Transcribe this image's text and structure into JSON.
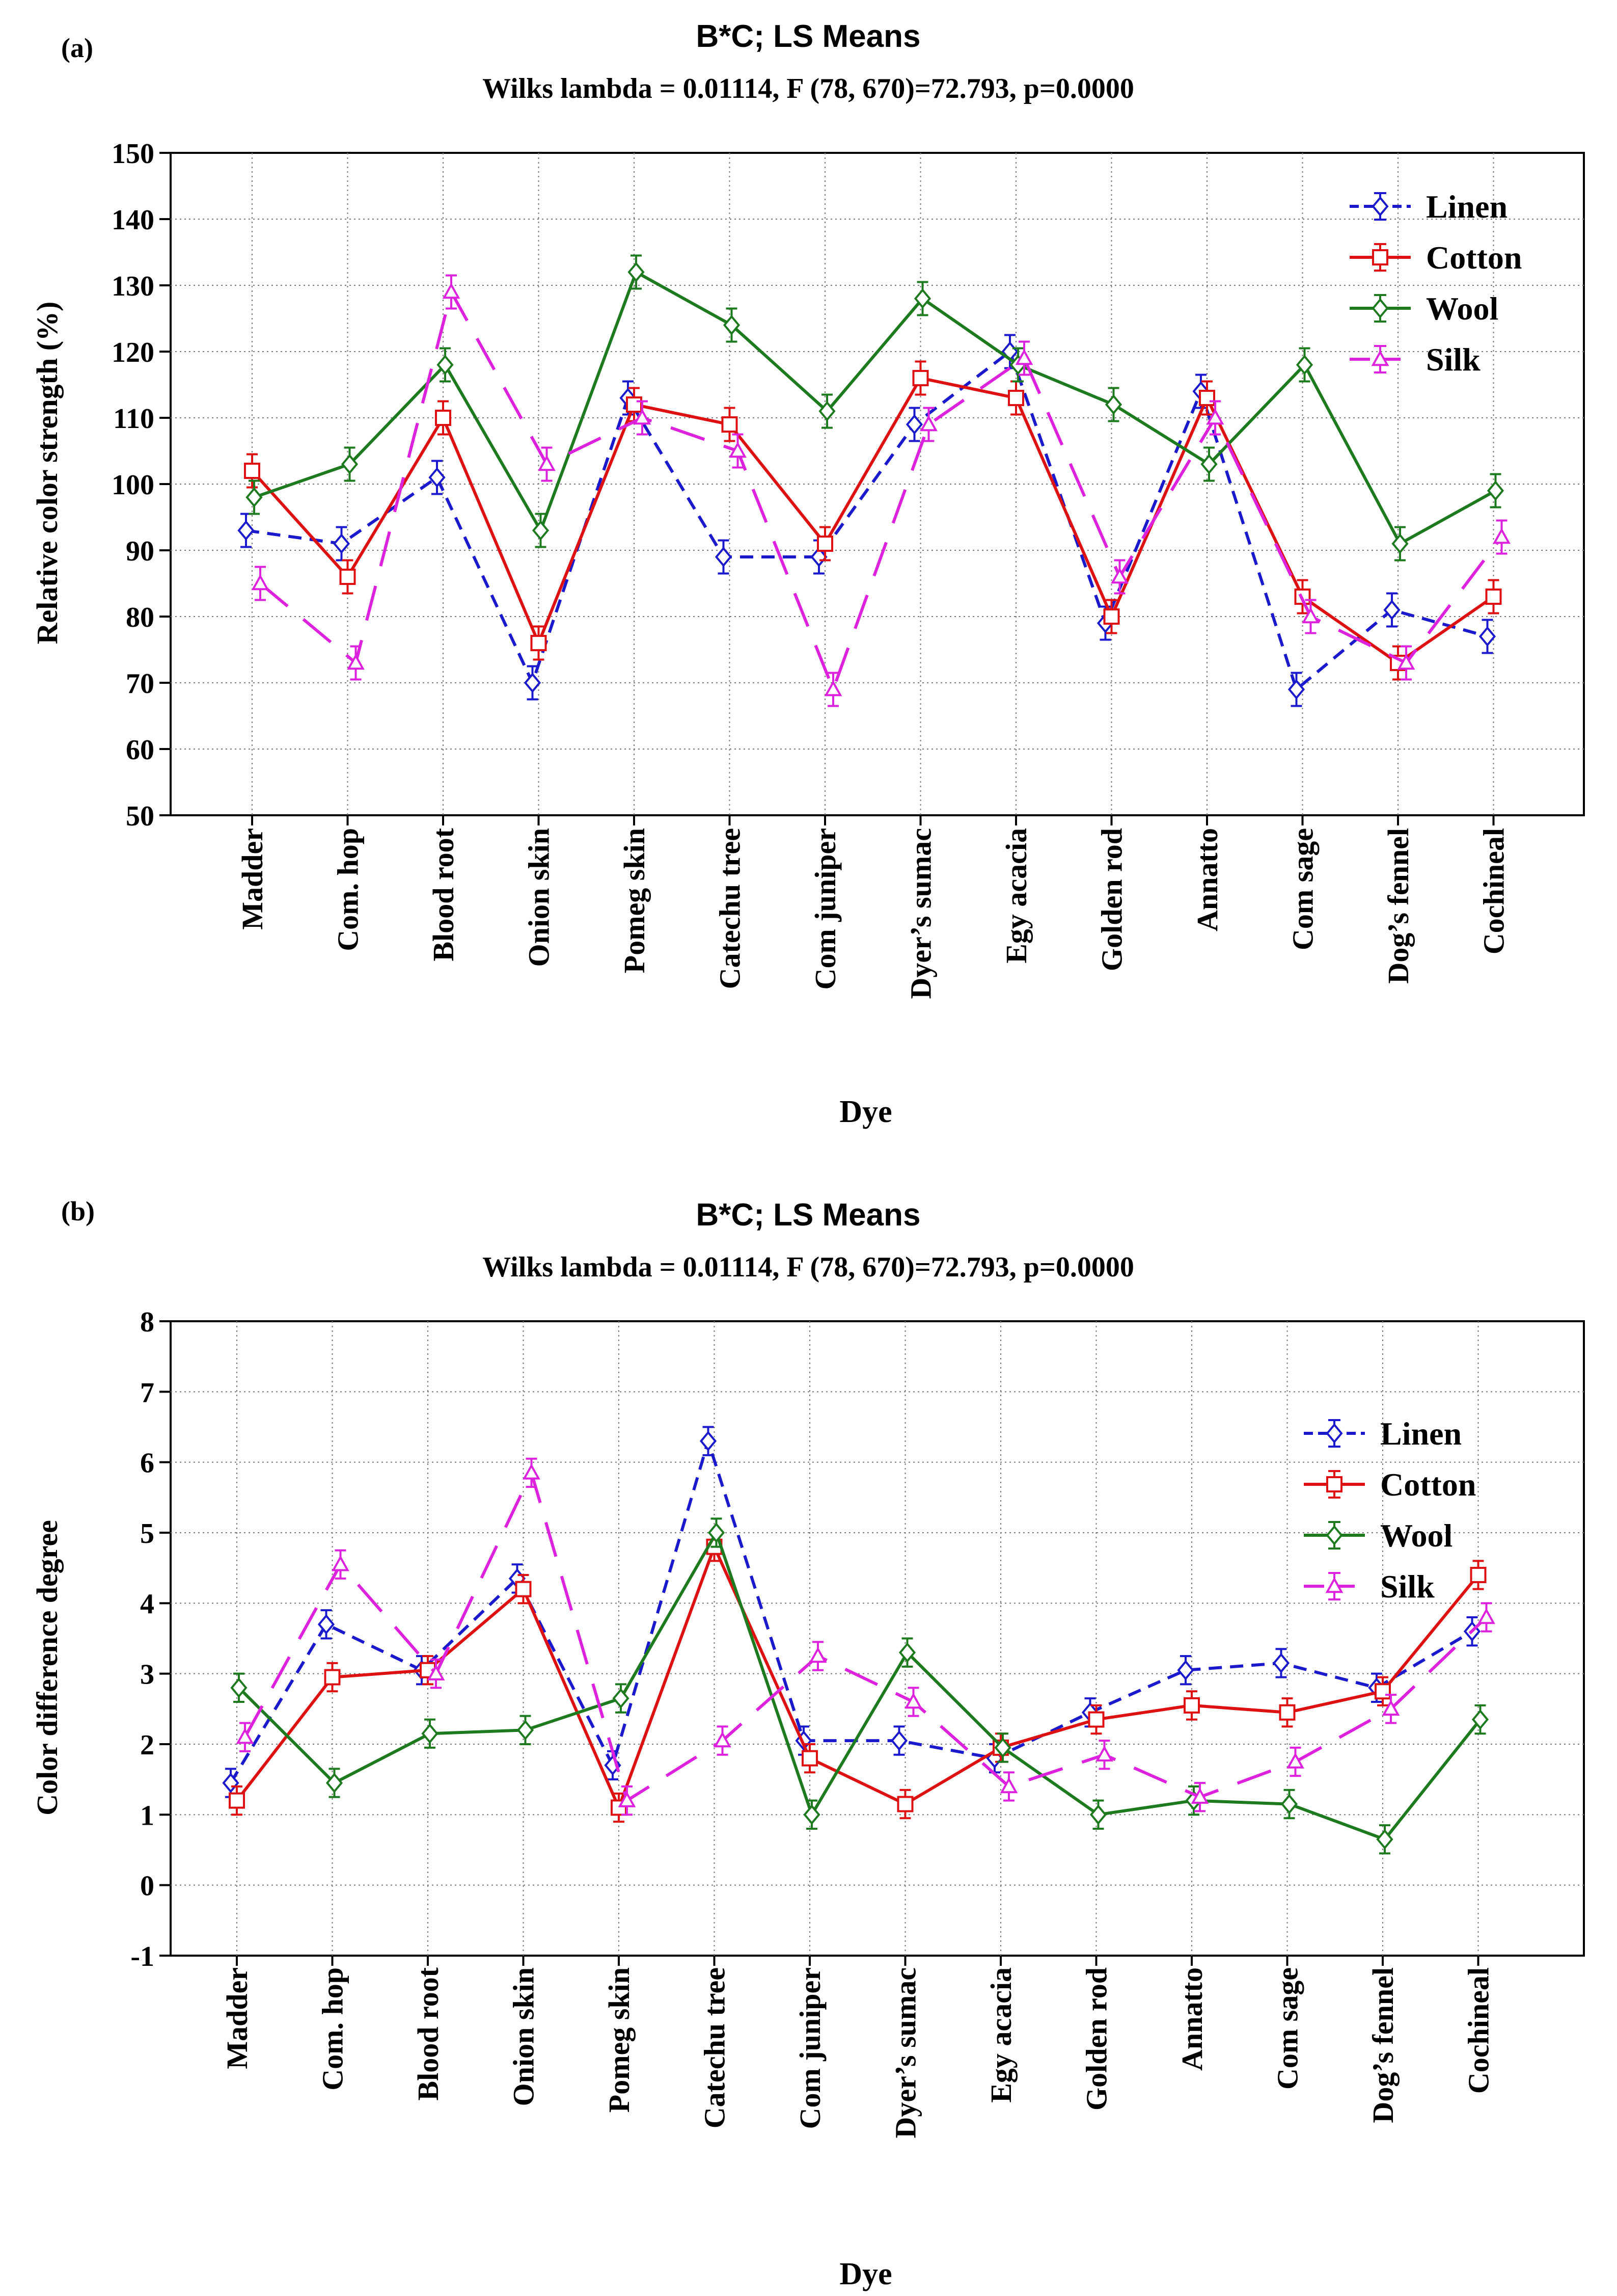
{
  "chart_data": [
    {
      "type": "line",
      "panel_label": "(a)",
      "title": "B*C; LS Means",
      "subtitle": "Wilks lambda = 0.01114, F (78, 670)=72.793, p=0.0000",
      "xlabel": "Dye",
      "ylabel": "Relative color strength (%)",
      "ylim": [
        50,
        150
      ],
      "yticks": [
        50,
        60,
        70,
        80,
        90,
        100,
        110,
        120,
        130,
        140,
        150
      ],
      "grid": true,
      "legend_position": "top-right",
      "categories": [
        "Madder",
        "Com. hop",
        "Blood root",
        "Onion skin",
        "Pomeg skin",
        "Catechu tree",
        "Com juniper",
        "Dyer’s sumac",
        "Egy acacia",
        "Golden rod",
        "Annatto",
        "Com sage",
        "Dog’s fennel",
        "Cochineal"
      ],
      "series": [
        {
          "name": "Linen",
          "color": "#1a1acc",
          "marker": "diamond",
          "dash": "dashed",
          "values": [
            93,
            91,
            101,
            70,
            113,
            89,
            89,
            109,
            120,
            79,
            114,
            69,
            81,
            77
          ],
          "errors": [
            2.5,
            2.5,
            2.5,
            2.5,
            2.5,
            2.5,
            2.5,
            2.5,
            2.5,
            2.5,
            2.5,
            2.5,
            2.5,
            2.5
          ]
        },
        {
          "name": "Cotton",
          "color": "#dd1111",
          "marker": "square",
          "dash": "solid",
          "values": [
            102,
            86,
            110,
            76,
            112,
            109,
            91,
            116,
            113,
            80,
            113,
            83,
            73,
            83
          ],
          "errors": [
            2.5,
            2.5,
            2.5,
            2.5,
            2.5,
            2.5,
            2.5,
            2.5,
            2.5,
            2.5,
            2.5,
            2.5,
            2.5,
            2.5
          ]
        },
        {
          "name": "Wool",
          "color": "#1e7a1e",
          "marker": "diamond",
          "dash": "solid",
          "values": [
            98,
            103,
            118,
            93,
            132,
            124,
            111,
            128,
            118,
            112,
            103,
            118,
            91,
            99
          ],
          "errors": [
            2.5,
            2.5,
            2.5,
            2.5,
            2.5,
            2.5,
            2.5,
            2.5,
            2.5,
            2.5,
            2.5,
            2.5,
            2.5,
            2.5
          ]
        },
        {
          "name": "Silk",
          "color": "#dd22dd",
          "marker": "triangle",
          "dash": "longdash",
          "values": [
            85,
            73,
            129,
            103,
            110,
            105,
            69,
            109,
            119,
            86,
            110,
            80,
            73,
            92
          ],
          "errors": [
            2.5,
            2.5,
            2.5,
            2.5,
            2.5,
            2.5,
            2.5,
            2.5,
            2.5,
            2.5,
            2.5,
            2.5,
            2.5,
            2.5
          ]
        }
      ]
    },
    {
      "type": "line",
      "panel_label": "(b)",
      "title": "B*C; LS Means",
      "subtitle": "Wilks lambda = 0.01114, F (78, 670)=72.793, p=0.0000",
      "xlabel": "Dye",
      "ylabel": "Color difference degree",
      "ylim": [
        -1,
        8
      ],
      "yticks": [
        -1,
        0,
        1,
        2,
        3,
        4,
        5,
        6,
        7,
        8
      ],
      "grid": true,
      "legend_position": "top-right",
      "categories": [
        "Madder",
        "Com. hop",
        "Blood root",
        "Onion skin",
        "Pomeg skin",
        "Catechu tree",
        "Com juniper",
        "Dyer’s sumac",
        "Egy acacia",
        "Golden rod",
        "Annatto",
        "Com sage",
        "Dog’s fennel",
        "Cochineal"
      ],
      "series": [
        {
          "name": "Linen",
          "color": "#1a1acc",
          "marker": "diamond",
          "dash": "dashed",
          "values": [
            1.45,
            3.7,
            3.05,
            4.35,
            1.7,
            6.3,
            2.05,
            2.05,
            1.8,
            2.45,
            3.05,
            3.15,
            2.8,
            3.6
          ],
          "errors": [
            0.2,
            0.2,
            0.2,
            0.2,
            0.2,
            0.2,
            0.2,
            0.2,
            0.2,
            0.2,
            0.2,
            0.2,
            0.2,
            0.2
          ]
        },
        {
          "name": "Cotton",
          "color": "#dd1111",
          "marker": "square",
          "dash": "solid",
          "values": [
            1.2,
            2.95,
            3.05,
            4.2,
            1.1,
            4.8,
            1.8,
            1.15,
            1.95,
            2.35,
            2.55,
            2.45,
            2.75,
            4.4
          ],
          "errors": [
            0.2,
            0.2,
            0.2,
            0.2,
            0.2,
            0.2,
            0.2,
            0.2,
            0.2,
            0.2,
            0.2,
            0.2,
            0.2,
            0.2
          ]
        },
        {
          "name": "Wool",
          "color": "#1e7a1e",
          "marker": "diamond",
          "dash": "solid",
          "values": [
            2.8,
            1.45,
            2.15,
            2.2,
            2.65,
            5.0,
            1.0,
            3.3,
            1.95,
            1.0,
            1.2,
            1.15,
            0.65,
            2.35
          ],
          "errors": [
            0.2,
            0.2,
            0.2,
            0.2,
            0.2,
            0.2,
            0.2,
            0.2,
            0.2,
            0.2,
            0.2,
            0.2,
            0.2,
            0.2
          ]
        },
        {
          "name": "Silk",
          "color": "#dd22dd",
          "marker": "triangle",
          "dash": "longdash",
          "values": [
            2.1,
            4.55,
            3.0,
            5.85,
            1.2,
            2.05,
            3.25,
            2.6,
            1.4,
            1.85,
            1.25,
            1.75,
            2.5,
            3.8
          ],
          "errors": [
            0.2,
            0.2,
            0.2,
            0.2,
            0.2,
            0.2,
            0.2,
            0.2,
            0.2,
            0.2,
            0.2,
            0.2,
            0.2,
            0.2
          ]
        }
      ]
    }
  ]
}
